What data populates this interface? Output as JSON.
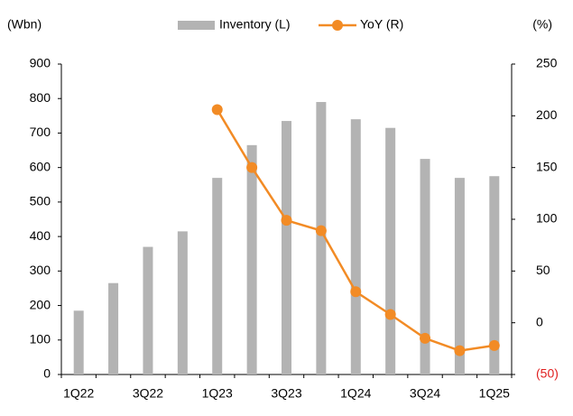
{
  "chart_data": {
    "type": "bar",
    "y_label": "(Wbn)",
    "y2_label": "(%)",
    "categories": [
      "1Q22",
      null,
      "3Q22",
      null,
      "1Q23",
      null,
      "3Q23",
      null,
      "1Q24",
      null,
      "3Q24",
      null,
      "1Q25"
    ],
    "series": [
      {
        "name": "Inventory (L)",
        "color": "#b3b3b3",
        "type": "bar",
        "values": [
          185,
          265,
          370,
          415,
          570,
          665,
          735,
          790,
          740,
          715,
          625,
          570,
          575
        ]
      },
      {
        "name": "YoY (R)",
        "color": "#f28b25",
        "type": "line",
        "axis": "y2",
        "values": [
          null,
          null,
          null,
          null,
          206,
          150,
          99,
          89,
          30,
          8,
          -15,
          -27,
          -22
        ]
      }
    ],
    "ylim": [
      0,
      900
    ],
    "yticks": [
      0,
      100,
      200,
      300,
      400,
      500,
      600,
      700,
      800,
      900
    ],
    "y2lim": [
      -50,
      250
    ],
    "y2ticks": [
      {
        "value": -50,
        "label": "(50)"
      },
      0,
      50,
      100,
      150,
      200,
      250
    ],
    "legend": "top"
  }
}
